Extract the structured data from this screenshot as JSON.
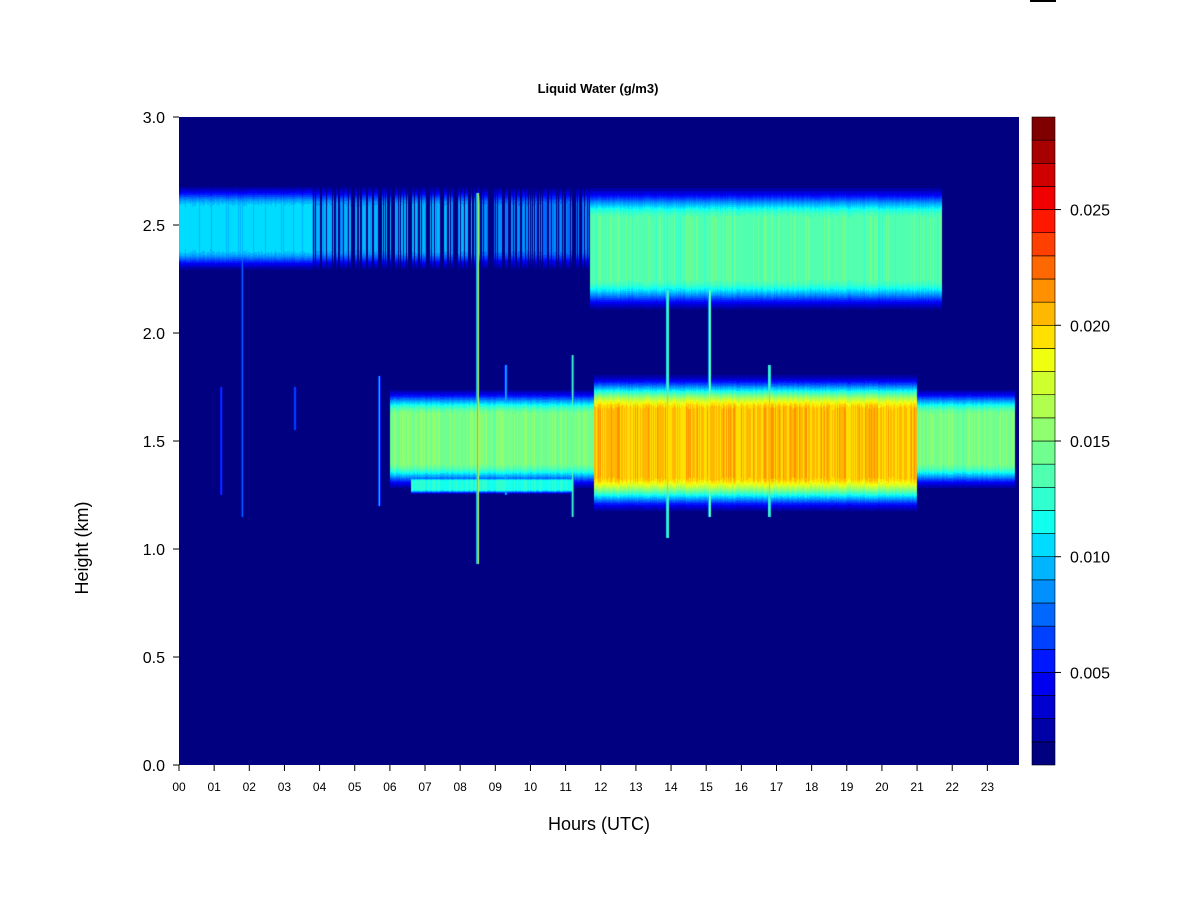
{
  "chart_data": {
    "type": "heatmap",
    "title": "Liquid Water (g/m3)",
    "xlabel": "Hours (UTC)",
    "ylabel": "Height (km)",
    "x_unit": "hours",
    "xlim": [
      0,
      23.9
    ],
    "ylim": [
      0.0,
      3.0
    ],
    "x_ticks": [
      "00",
      "01",
      "02",
      "03",
      "04",
      "05",
      "06",
      "07",
      "08",
      "09",
      "10",
      "11",
      "12",
      "13",
      "14",
      "15",
      "16",
      "17",
      "18",
      "19",
      "20",
      "21",
      "22",
      "23"
    ],
    "y_ticks": [
      "0.0",
      "0.5",
      "1.0",
      "1.5",
      "2.0",
      "2.5",
      "3.0"
    ],
    "colorbar": {
      "min": 0.001,
      "max": 0.029,
      "levels": 28,
      "ticks": [
        {
          "value": 0.005,
          "label": "0.005"
        },
        {
          "value": 0.01,
          "label": "0.010"
        },
        {
          "value": 0.015,
          "label": "0.015"
        },
        {
          "value": 0.02,
          "label": "0.020"
        },
        {
          "value": 0.025,
          "label": "0.025"
        }
      ],
      "colors": [
        "#000080",
        "#0000A8",
        "#0000D0",
        "#0000F0",
        "#0018FF",
        "#0040FF",
        "#0068FF",
        "#0090FF",
        "#00B4FF",
        "#00DCFF",
        "#10FFEF",
        "#30FFCF",
        "#50FFAF",
        "#70FF8F",
        "#90FF6F",
        "#B0FF4F",
        "#D0FF2F",
        "#F0FF10",
        "#FFE000",
        "#FFB800",
        "#FF9000",
        "#FF6800",
        "#FF4000",
        "#FF1800",
        "#F00000",
        "#D00000",
        "#A80000",
        "#800000"
      ]
    },
    "background_value": 0.001,
    "layers": [
      {
        "name": "upper layer early",
        "x_start": 0.0,
        "x_end": 3.8,
        "bottom": 2.27,
        "top": 2.7,
        "peak": 0.0095
      },
      {
        "name": "upper layer broken",
        "x_start": 3.8,
        "x_end": 8.6,
        "bottom": 2.27,
        "top": 2.7,
        "peak": 0.0085
      },
      {
        "name": "upper layer broken 2",
        "x_start": 8.6,
        "x_end": 11.7,
        "bottom": 2.27,
        "top": 2.7,
        "peak": 0.0075
      },
      {
        "name": "upper layer late",
        "x_start": 11.7,
        "x_end": 21.7,
        "bottom": 2.08,
        "top": 2.7,
        "peak": 0.0125
      },
      {
        "name": "lower layer",
        "x_start": 6.0,
        "x_end": 23.8,
        "bottom": 1.26,
        "top": 1.76,
        "peak": 0.0135
      },
      {
        "name": "lower layer core",
        "x_start": 11.8,
        "x_end": 21.0,
        "bottom": 1.15,
        "top": 1.83,
        "peak": 0.0185
      },
      {
        "name": "lower sub-layer",
        "x_start": 6.6,
        "x_end": 11.2,
        "bottom": 1.25,
        "top": 1.34,
        "peak": 0.011
      }
    ],
    "spikes": [
      {
        "x": 1.2,
        "bottom": 1.25,
        "top": 1.75,
        "peak": 0.008
      },
      {
        "x": 1.8,
        "bottom": 1.15,
        "top": 2.6,
        "peak": 0.009
      },
      {
        "x": 3.3,
        "bottom": 1.55,
        "top": 1.75,
        "peak": 0.008
      },
      {
        "x": 5.7,
        "bottom": 1.2,
        "top": 1.8,
        "peak": 0.011
      },
      {
        "x": 8.5,
        "bottom": 0.93,
        "top": 2.65,
        "peak": 0.024
      },
      {
        "x": 9.3,
        "bottom": 1.25,
        "top": 1.85,
        "peak": 0.012
      },
      {
        "x": 11.2,
        "bottom": 1.15,
        "top": 1.9,
        "peak": 0.014
      },
      {
        "x": 13.9,
        "bottom": 1.05,
        "top": 2.2,
        "peak": 0.021
      },
      {
        "x": 15.1,
        "bottom": 1.15,
        "top": 2.2,
        "peak": 0.02
      },
      {
        "x": 16.8,
        "bottom": 1.15,
        "top": 1.85,
        "peak": 0.021
      }
    ]
  }
}
